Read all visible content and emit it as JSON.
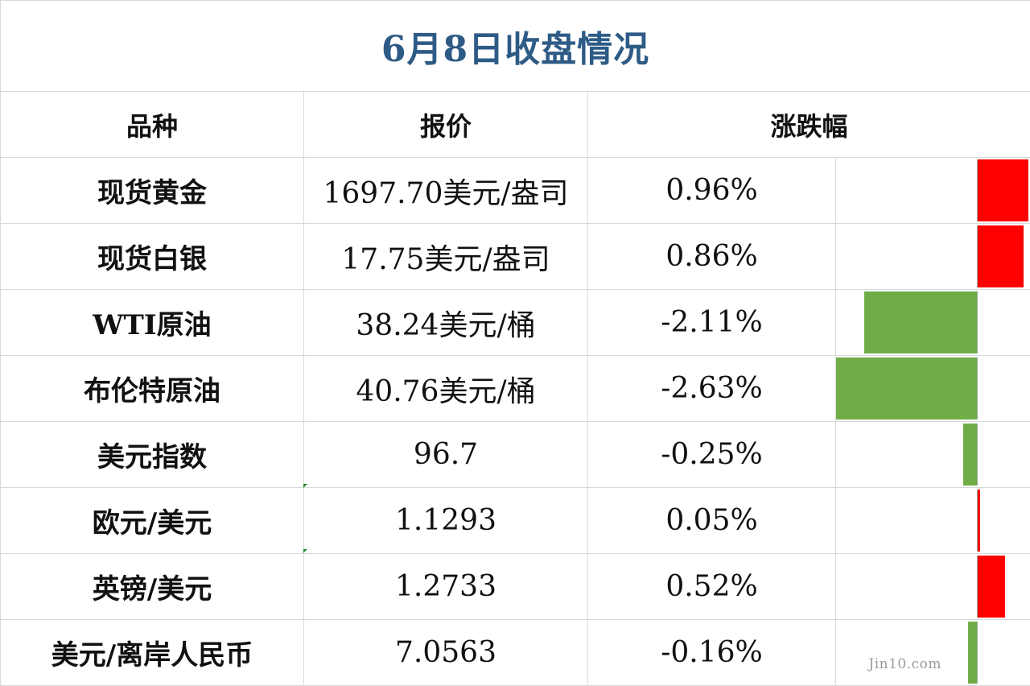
{
  "title": "6月8日收盘情况",
  "headers": {
    "name": "品种",
    "price": "报价",
    "change": "涨跌幅"
  },
  "rows": [
    {
      "name": "现货黄金",
      "price": "1697.70美元/盎司",
      "change": "0.96%",
      "change_value": 0.96
    },
    {
      "name": "现货白银",
      "price": "17.75美元/盎司",
      "change": "0.86%",
      "change_value": 0.86
    },
    {
      "name": "WTI原油",
      "price": "38.24美元/桶",
      "change": "-2.11%",
      "change_value": -2.11
    },
    {
      "name": "布伦特原油",
      "price": "40.76美元/桶",
      "change": "-2.63%",
      "change_value": -2.63
    },
    {
      "name": "美元指数",
      "price": "96.7",
      "change": "-0.25%",
      "change_value": -0.25
    },
    {
      "name": "欧元/美元",
      "price": "1.1293",
      "change": "0.05%",
      "change_value": 0.05
    },
    {
      "name": "英镑/美元",
      "price": "1.2733",
      "change": "0.52%",
      "change_value": 0.52
    },
    {
      "name": "美元/离岸人民币",
      "price": "7.0563",
      "change": "-0.16%",
      "change_value": -0.16
    }
  ],
  "colors": {
    "positive": "#ff0000",
    "negative": "#70ad47",
    "title": "#2e5b86"
  },
  "watermark": "Jin10.com"
}
